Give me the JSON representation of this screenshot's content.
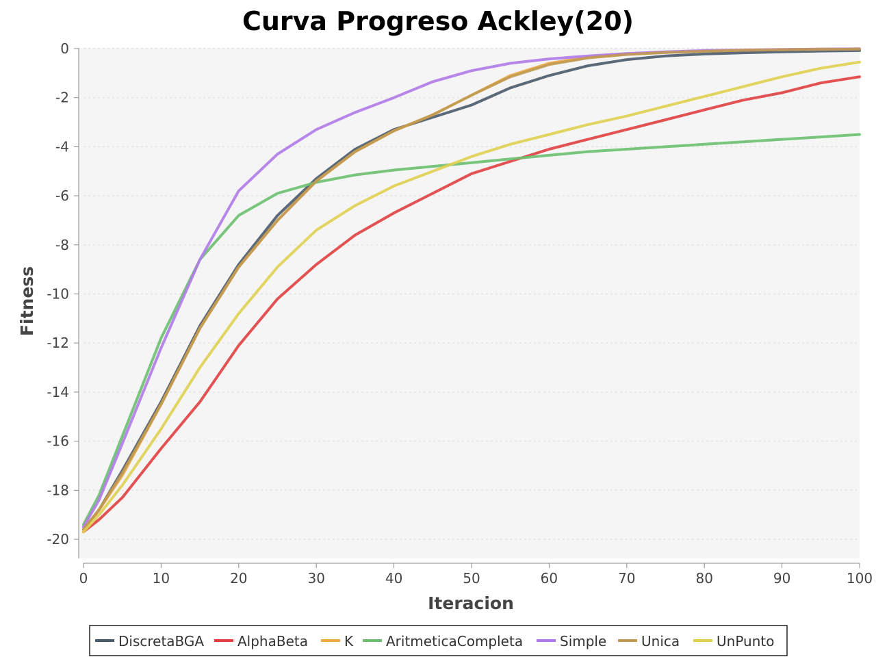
{
  "chart_data": {
    "type": "line",
    "title": "Curva Progreso Ackley(20)",
    "xlabel": "Iteracion",
    "ylabel": "Fitness",
    "xlim": [
      0,
      100
    ],
    "ylim": [
      -20.7,
      0
    ],
    "xticks": [
      "0",
      "10",
      "20",
      "30",
      "40",
      "50",
      "60",
      "70",
      "80",
      "90",
      "100"
    ],
    "yticks": [
      "0",
      "-2",
      "-4",
      "-6",
      "-8",
      "-10",
      "-12",
      "-14",
      "-16",
      "-18",
      "-20"
    ],
    "grid": true,
    "legend_position": "bottom",
    "x": [
      0,
      2,
      5,
      10,
      15,
      20,
      25,
      30,
      35,
      40,
      45,
      50,
      55,
      60,
      65,
      70,
      75,
      80,
      85,
      90,
      95,
      100
    ],
    "series": [
      {
        "name": "DiscretaBGA",
        "color": "#4a5a6a",
        "values": [
          -19.6,
          -18.8,
          -17.2,
          -14.4,
          -11.3,
          -8.8,
          -6.8,
          -5.3,
          -4.1,
          -3.3,
          -2.8,
          -2.3,
          -1.6,
          -1.1,
          -0.7,
          -0.45,
          -0.3,
          -0.22,
          -0.17,
          -0.13,
          -0.1,
          -0.08
        ]
      },
      {
        "name": "AlphaBeta",
        "color": "#e04040",
        "values": [
          -19.7,
          -19.2,
          -18.3,
          -16.3,
          -14.4,
          -12.1,
          -10.2,
          -8.8,
          -7.6,
          -6.7,
          -5.9,
          -5.1,
          -4.6,
          -4.1,
          -3.7,
          -3.3,
          -2.9,
          -2.5,
          -2.1,
          -1.8,
          -1.4,
          -1.15
        ]
      },
      {
        "name": "K",
        "color": "#f0a848",
        "values": [
          -19.6,
          -18.8,
          -17.4,
          -14.5,
          -11.4,
          -8.9,
          -7.0,
          -5.4,
          -4.2,
          -3.35,
          -2.7,
          -1.9,
          -1.1,
          -0.6,
          -0.35,
          -0.22,
          -0.15,
          -0.1,
          -0.06,
          -0.04,
          -0.02,
          -0.01
        ]
      },
      {
        "name": "AritmeticaCompleta",
        "color": "#6cc070",
        "values": [
          -19.4,
          -18.2,
          -15.8,
          -11.8,
          -8.6,
          -6.8,
          -5.9,
          -5.45,
          -5.15,
          -4.95,
          -4.8,
          -4.65,
          -4.5,
          -4.35,
          -4.2,
          -4.1,
          -4.0,
          -3.9,
          -3.8,
          -3.7,
          -3.6,
          -3.5
        ]
      },
      {
        "name": "Simple",
        "color": "#b07ae8",
        "values": [
          -19.5,
          -18.4,
          -16.1,
          -12.2,
          -8.6,
          -5.8,
          -4.3,
          -3.3,
          -2.6,
          -2.0,
          -1.35,
          -0.9,
          -0.6,
          -0.42,
          -0.3,
          -0.2,
          -0.13,
          -0.08,
          -0.06,
          -0.04,
          -0.02,
          -0.01
        ]
      },
      {
        "name": "Unica",
        "color": "#c09a50",
        "values": [
          -19.6,
          -18.8,
          -17.3,
          -14.5,
          -11.4,
          -8.9,
          -7.0,
          -5.4,
          -4.2,
          -3.35,
          -2.7,
          -1.9,
          -1.15,
          -0.65,
          -0.38,
          -0.24,
          -0.16,
          -0.11,
          -0.07,
          -0.05,
          -0.03,
          -0.02
        ]
      },
      {
        "name": "UnPunto",
        "color": "#e0d050",
        "values": [
          -19.7,
          -19.0,
          -17.8,
          -15.5,
          -13.0,
          -10.8,
          -8.9,
          -7.4,
          -6.4,
          -5.6,
          -5.0,
          -4.4,
          -3.9,
          -3.5,
          -3.1,
          -2.75,
          -2.35,
          -1.95,
          -1.55,
          -1.15,
          -0.8,
          -0.55
        ]
      }
    ]
  }
}
